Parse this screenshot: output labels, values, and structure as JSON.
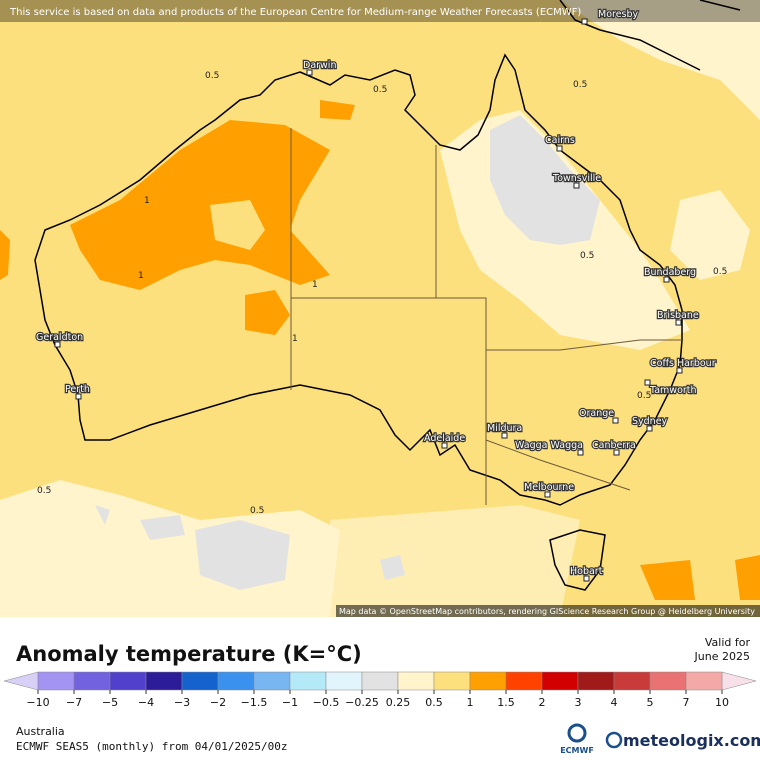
{
  "map": {
    "notice": "This service is based on data and products of the European Centre for Medium-range Weather Forecasts (ECMWF)",
    "attribution": "Map data © OpenStreetMap contributors, rendering GIScience Research Group @ Heidelberg University",
    "cities": [
      "Moresby",
      "Darwin",
      "Cairns",
      "Townsville",
      "Bundaberg",
      "Brisbane",
      "Coffs Harbour",
      "Tamworth",
      "Orange",
      "Sydney",
      "Mildura",
      "Wagga Wagga",
      "Canberra",
      "Melbourne",
      "Hobart",
      "Adelaide",
      "Geraldton",
      "Perth"
    ],
    "contour_labels": [
      0.5,
      0.5,
      0.5,
      0.5,
      0.5,
      0.5,
      0.5,
      0.5,
      1,
      1,
      1,
      1
    ]
  },
  "legend": {
    "title": "Anomaly temperature (K=°C)",
    "valid_for": "Valid for",
    "valid_date": "June 2025",
    "ticks": [
      {
        "value": -10,
        "label": "−10"
      },
      {
        "value": -7,
        "label": "−7"
      },
      {
        "value": -5,
        "label": "−5"
      },
      {
        "value": -4,
        "label": "−4"
      },
      {
        "value": -3,
        "label": "−3"
      },
      {
        "value": -2,
        "label": "−2"
      },
      {
        "value": -1.5,
        "label": "−1.5"
      },
      {
        "value": -1,
        "label": "−1"
      },
      {
        "value": -0.5,
        "label": "−0.5"
      },
      {
        "value": -0.25,
        "label": "−0.25"
      },
      0.25,
      0.5,
      1,
      1.5,
      2,
      3,
      4,
      5,
      7,
      10
    ],
    "colors": [
      "#d8d0f6",
      "#a394f2",
      "#7262e0",
      "#5040cc",
      "#2c1c98",
      "#1462cc",
      "#3a92ee",
      "#78b6f2",
      "#b4eaf8",
      "#e2f5fc",
      "#e2e2e2",
      "#fff4cc",
      "#fde07e",
      "#ffa000",
      "#ff4200",
      "#d20000",
      "#a11a1a",
      "#c93a3a",
      "#e97272",
      "#f4a9a9",
      "#f8e0e8"
    ]
  },
  "footer": {
    "region": "Australia",
    "model": "ECMWF SEAS5 (monthly) from 04/01/2025/00z",
    "ecmwf_logo": "ECMWF",
    "brand": "meteologix.com"
  }
}
